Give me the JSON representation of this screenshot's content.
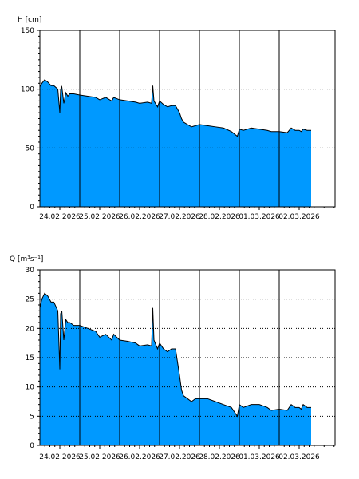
{
  "colors": {
    "fill": "#0099FF",
    "outline": "#000000",
    "grid": "#000000",
    "background": "#ffffff"
  },
  "chart_data": [
    {
      "type": "area",
      "ylabel": "H [cm]",
      "ylim": [
        0,
        150
      ],
      "yticks": [
        "0",
        "50",
        "100",
        "150"
      ],
      "xlabels": [
        "24.02.2026",
        "25.02.2026",
        "26.02.2026",
        "27.02.2026",
        "28.02.2026",
        "01.03.2026",
        "02.03.2026"
      ],
      "xlim": [
        -0.5,
        6.9
      ],
      "grid": "vertical day lines, horizontal dotted at 50 and 100",
      "series": [
        {
          "x": [
            -0.5,
            -0.45,
            -0.38,
            -0.3,
            -0.22,
            -0.15,
            -0.05,
            0.0,
            0.02,
            0.05,
            0.1,
            0.15,
            0.2,
            0.25,
            0.35,
            0.5,
            0.7,
            0.9,
            1.0,
            1.15,
            1.3,
            1.35,
            1.5,
            1.7,
            1.9,
            2.0,
            2.2,
            2.3,
            2.33,
            2.36,
            2.45,
            2.5,
            2.6,
            2.7,
            2.8,
            2.9,
            3.0,
            3.05,
            3.1,
            3.2,
            3.3,
            3.4,
            3.5,
            3.7,
            3.9,
            4.1,
            4.3,
            4.45,
            4.5,
            4.6,
            4.8,
            5.0,
            5.2,
            5.3,
            5.5,
            5.7,
            5.8,
            5.9,
            6.0,
            6.05,
            6.1,
            6.2,
            6.3
          ],
          "y": [
            102,
            105,
            108,
            106,
            103,
            103,
            100,
            80,
            100,
            102,
            88,
            97,
            94,
            96,
            96,
            95,
            94,
            93,
            91,
            93,
            90,
            93,
            91,
            90,
            89,
            88,
            89,
            88,
            103,
            90,
            85,
            90,
            87,
            85,
            86,
            86,
            80,
            75,
            72,
            70,
            68,
            69,
            70,
            69,
            68,
            67,
            64,
            60,
            66,
            65,
            67,
            66,
            65,
            64,
            64,
            63,
            67,
            65,
            65,
            64,
            66,
            65,
            65
          ]
        }
      ]
    },
    {
      "type": "area",
      "ylabel": "Q [m³s⁻¹]",
      "ylim": [
        0,
        30
      ],
      "yticks": [
        "0",
        "5",
        "10",
        "15",
        "20",
        "25",
        "30"
      ],
      "xlabels": [
        "24.02.2026",
        "25.02.2026",
        "26.02.2026",
        "27.02.2026",
        "28.02.2026",
        "01.03.2026",
        "02.03.2026"
      ],
      "xlim": [
        -0.5,
        6.9
      ],
      "grid": "vertical day lines, horizontal dotted every 5",
      "series": [
        {
          "x": [
            -0.5,
            -0.45,
            -0.38,
            -0.3,
            -0.22,
            -0.15,
            -0.05,
            0.0,
            0.02,
            0.05,
            0.1,
            0.15,
            0.2,
            0.25,
            0.35,
            0.5,
            0.7,
            0.9,
            1.0,
            1.15,
            1.3,
            1.35,
            1.5,
            1.7,
            1.9,
            2.0,
            2.2,
            2.3,
            2.33,
            2.36,
            2.45,
            2.5,
            2.6,
            2.7,
            2.8,
            2.9,
            3.0,
            3.05,
            3.1,
            3.2,
            3.3,
            3.4,
            3.5,
            3.7,
            3.9,
            4.1,
            4.3,
            4.45,
            4.5,
            4.6,
            4.8,
            5.0,
            5.2,
            5.3,
            5.5,
            5.7,
            5.8,
            5.9,
            6.0,
            6.05,
            6.1,
            6.2,
            6.3
          ],
          "y": [
            23.5,
            25,
            26,
            25.5,
            24.5,
            24.5,
            23,
            13,
            22.5,
            23,
            18,
            21.5,
            21,
            21,
            20.5,
            20.5,
            20,
            19.5,
            18.5,
            19,
            18,
            19,
            18,
            17.8,
            17.5,
            17,
            17.2,
            17,
            23.5,
            18,
            16.5,
            17.5,
            16.5,
            16,
            16.5,
            16.5,
            12,
            9.5,
            8.5,
            8,
            7.5,
            8,
            8,
            8,
            7.5,
            7,
            6.5,
            5,
            7,
            6.5,
            7,
            7,
            6.5,
            6,
            6.2,
            6,
            7,
            6.5,
            6.5,
            6.2,
            7,
            6.5,
            6.5
          ]
        }
      ]
    }
  ]
}
